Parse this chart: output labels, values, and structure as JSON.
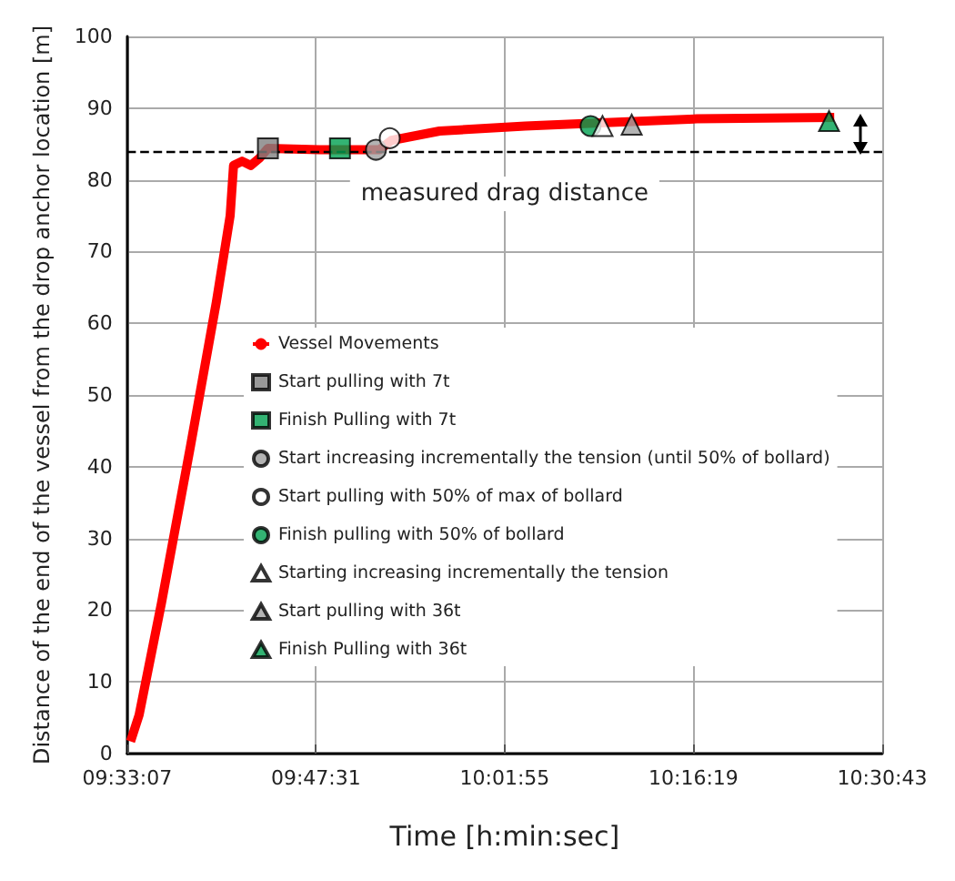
{
  "chart_data": {
    "type": "line",
    "xlabel": "Time [h:min:sec]",
    "ylabel": "Distance of the end of the vessel from the drop anchor location [m]",
    "xlim": [
      9.551944,
      10.511944
    ],
    "xticks": [
      {
        "value": 9.551944,
        "label": "09:33:07"
      },
      {
        "value": 9.791944,
        "label": "09:47:31"
      },
      {
        "value": 10.031944,
        "label": "10:01:55"
      },
      {
        "value": 10.271944,
        "label": "10:16:19"
      },
      {
        "value": 10.511944,
        "label": "10:30:43"
      }
    ],
    "ylim": [
      0,
      100
    ],
    "yticks": [
      0,
      10,
      20,
      30,
      40,
      50,
      60,
      70,
      80,
      90,
      100
    ],
    "grid": true,
    "legend": "left",
    "series": [
      {
        "name": "Vessel Movements",
        "color": "#ff0000",
        "marker": "none",
        "x": [
          9.5563,
          9.5672,
          9.5956,
          9.6327,
          9.6654,
          9.6829,
          9.6872,
          9.6981,
          9.709,
          9.72,
          9.7309,
          9.7963,
          9.8727,
          9.888,
          9.9491,
          10.0581,
          10.1672,
          10.2763,
          10.4509
        ],
        "values": [
          1.7,
          5.4,
          21,
          43,
          63,
          75,
          82,
          82.6,
          82,
          83,
          84.4,
          84.2,
          84.2,
          85.5,
          86.8,
          87.5,
          88,
          88.5,
          88.7
        ]
      },
      {
        "name": "Start pulling with 7t",
        "type": "scatter",
        "marker": "square",
        "color": "#808080",
        "x": [
          9.7309
        ],
        "values": [
          84.4
        ]
      },
      {
        "name": "Finish Pulling with 7t",
        "type": "scatter",
        "marker": "square",
        "color": "#00a050",
        "x": [
          9.8225
        ],
        "values": [
          84.4
        ]
      },
      {
        "name": "Start increasing incrementally the tension (until 50% of bollard)",
        "type": "scatter",
        "marker": "circle",
        "color": "#a0a0a0",
        "x": [
          9.8683
        ],
        "values": [
          84.2
        ]
      },
      {
        "name": "Start pulling with 50% of max of bollard",
        "type": "scatter",
        "marker": "circle",
        "color": "#ffffff",
        "x": [
          9.8858
        ],
        "values": [
          85.8
        ]
      },
      {
        "name": "Finish pulling with 50% of bollard",
        "type": "scatter",
        "marker": "circle",
        "color": "#00a050",
        "x": [
          10.1411
        ],
        "values": [
          87.5
        ]
      },
      {
        "name": "Starting increasing incrementally the tension",
        "type": "scatter",
        "marker": "triangle",
        "color": "#ffffff",
        "x": [
          10.1563
        ],
        "values": [
          87.5
        ]
      },
      {
        "name": "Start pulling with 36t",
        "type": "scatter",
        "marker": "triangle",
        "color": "#a0a0a0",
        "x": [
          10.1934
        ],
        "values": [
          87.7
        ]
      },
      {
        "name": "Finish Pulling with 36t",
        "type": "scatter",
        "marker": "triangle",
        "color": "#00a050",
        "x": [
          10.4443
        ],
        "values": [
          88.2
        ]
      }
    ],
    "ref_lines": [
      {
        "axis": "y",
        "value": 84,
        "label": "measured drag distance",
        "color": "#000000",
        "line_style": "dashed"
      }
    ]
  }
}
